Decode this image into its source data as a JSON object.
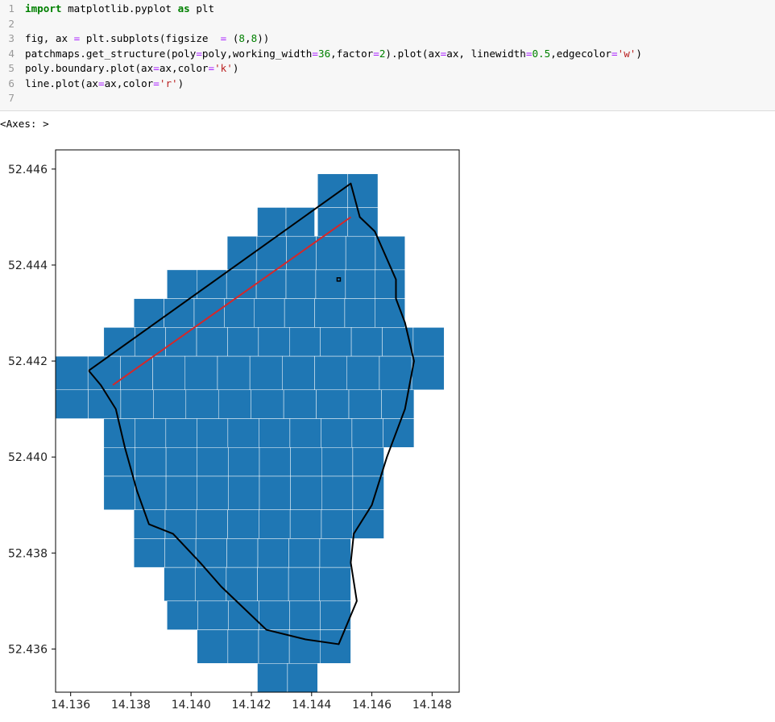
{
  "code_cell": {
    "line_numbers": [
      "1",
      "2",
      "3",
      "4",
      "5",
      "6",
      "7"
    ],
    "lines": [
      [
        {
          "t": "import",
          "c": "kw"
        },
        {
          "t": " matplotlib.pyplot "
        },
        {
          "t": "as",
          "c": "kw"
        },
        {
          "t": " plt"
        }
      ],
      [],
      [
        {
          "t": "fig, ax "
        },
        {
          "t": "=",
          "c": "op"
        },
        {
          "t": " plt.subplots(figsize  "
        },
        {
          "t": "=",
          "c": "op"
        },
        {
          "t": " ("
        },
        {
          "t": "8",
          "c": "num"
        },
        {
          "t": ","
        },
        {
          "t": "8",
          "c": "num"
        },
        {
          "t": "))"
        }
      ],
      [
        {
          "t": "patchmaps.get_structure(poly"
        },
        {
          "t": "=",
          "c": "op"
        },
        {
          "t": "poly,working_width"
        },
        {
          "t": "=",
          "c": "op"
        },
        {
          "t": "36",
          "c": "num"
        },
        {
          "t": ",factor"
        },
        {
          "t": "=",
          "c": "op"
        },
        {
          "t": "2",
          "c": "num"
        },
        {
          "t": ").plot(ax"
        },
        {
          "t": "=",
          "c": "op"
        },
        {
          "t": "ax, linewidth"
        },
        {
          "t": "=",
          "c": "op"
        },
        {
          "t": "0.5",
          "c": "num"
        },
        {
          "t": ",edgecolor"
        },
        {
          "t": "=",
          "c": "op"
        },
        {
          "t": "'w'",
          "c": "str"
        },
        {
          "t": ")"
        }
      ],
      [
        {
          "t": "poly.boundary.plot(ax"
        },
        {
          "t": "=",
          "c": "op"
        },
        {
          "t": "ax,color"
        },
        {
          "t": "=",
          "c": "op"
        },
        {
          "t": "'k'",
          "c": "str"
        },
        {
          "t": ")"
        }
      ],
      [
        {
          "t": "line.plot(ax"
        },
        {
          "t": "=",
          "c": "op"
        },
        {
          "t": "ax,color"
        },
        {
          "t": "=",
          "c": "op"
        },
        {
          "t": "'r'",
          "c": "str"
        },
        {
          "t": ")"
        }
      ],
      []
    ]
  },
  "output": {
    "repr": "<Axes: >"
  },
  "chart_data": {
    "type": "map",
    "grid": false,
    "xlim": [
      14.1355,
      14.1489
    ],
    "ylim": [
      52.4351,
      52.4464
    ],
    "xticks": [
      14.136,
      14.138,
      14.14,
      14.142,
      14.144,
      14.146,
      14.148
    ],
    "xtick_labels": [
      "14.136",
      "14.138",
      "14.140",
      "14.142",
      "14.144",
      "14.146",
      "14.148"
    ],
    "yticks": [
      52.436,
      52.438,
      52.44,
      52.442,
      52.444,
      52.446
    ],
    "ytick_labels": [
      "52.436",
      "52.438",
      "52.440",
      "52.442",
      "52.444",
      "52.446"
    ],
    "colors": {
      "patch_fill": "#1f77b4",
      "patch_edge": "#ffffff",
      "boundary": "#000000",
      "line": "#d62728",
      "axes": "#000000"
    },
    "patch_rows": [
      {
        "y": [
          52.4459,
          52.4452
        ],
        "x_ranges": [
          [
            14.1442,
            14.1462
          ]
        ]
      },
      {
        "y": [
          52.4452,
          52.4446
        ],
        "x_ranges": [
          [
            14.1442,
            14.1462
          ]
        ]
      },
      {
        "y": [
          52.4452,
          52.4446
        ],
        "x_ranges": [
          [
            14.1422,
            14.1441
          ]
        ]
      },
      {
        "y": [
          52.4446,
          52.4439
        ],
        "x_ranges": [
          [
            14.1412,
            14.1471
          ]
        ]
      },
      {
        "y": [
          52.4439,
          52.4433
        ],
        "x_ranges": [
          [
            14.1392,
            14.1471
          ]
        ]
      },
      {
        "y": [
          52.4433,
          52.4427
        ],
        "x_ranges": [
          [
            14.1381,
            14.1471
          ]
        ]
      },
      {
        "y": [
          52.4427,
          52.4421
        ],
        "x_ranges": [
          [
            14.1371,
            14.1484
          ]
        ]
      },
      {
        "y": [
          52.4421,
          52.4414
        ],
        "x_ranges": [
          [
            14.1355,
            14.1484
          ]
        ]
      },
      {
        "y": [
          52.4414,
          52.4408
        ],
        "x_ranges": [
          [
            14.1355,
            14.1474
          ]
        ]
      },
      {
        "y": [
          52.4408,
          52.4402
        ],
        "x_ranges": [
          [
            14.1371,
            14.1474
          ]
        ]
      },
      {
        "y": [
          52.4402,
          52.4396
        ],
        "x_ranges": [
          [
            14.1371,
            14.1464
          ]
        ]
      },
      {
        "y": [
          52.4396,
          52.4389
        ],
        "x_ranges": [
          [
            14.1371,
            14.1464
          ]
        ]
      },
      {
        "y": [
          52.4389,
          52.4383
        ],
        "x_ranges": [
          [
            14.1381,
            14.1464
          ]
        ]
      },
      {
        "y": [
          52.4383,
          52.4377
        ],
        "x_ranges": [
          [
            14.1381,
            14.1453
          ]
        ]
      },
      {
        "y": [
          52.4377,
          52.437
        ],
        "x_ranges": [
          [
            14.1391,
            14.1453
          ]
        ]
      },
      {
        "y": [
          52.437,
          52.4364
        ],
        "x_ranges": [
          [
            14.1392,
            14.1453
          ]
        ]
      },
      {
        "y": [
          52.4364,
          52.4357
        ],
        "x_ranges": [
          [
            14.1402,
            14.1453
          ]
        ]
      },
      {
        "y": [
          52.4357,
          52.4351
        ],
        "x_ranges": [
          [
            14.1422,
            14.1442
          ]
        ]
      }
    ],
    "boundary": [
      [
        14.1366,
        52.4418
      ],
      [
        14.1453,
        52.4457
      ],
      [
        14.1456,
        52.445
      ],
      [
        14.1461,
        52.4447
      ],
      [
        14.1468,
        52.4437
      ],
      [
        14.1468,
        52.4433
      ],
      [
        14.1471,
        52.4428
      ],
      [
        14.1474,
        52.442
      ],
      [
        14.1471,
        52.441
      ],
      [
        14.1465,
        52.44
      ],
      [
        14.146,
        52.439
      ],
      [
        14.1454,
        52.4384
      ],
      [
        14.1453,
        52.4378
      ],
      [
        14.1455,
        52.437
      ],
      [
        14.1449,
        52.4361
      ],
      [
        14.1438,
        52.4362
      ],
      [
        14.1425,
        52.4364
      ],
      [
        14.141,
        52.4373
      ],
      [
        14.1403,
        52.4378
      ],
      [
        14.1394,
        52.4384
      ],
      [
        14.1386,
        52.4386
      ],
      [
        14.1382,
        52.4393
      ],
      [
        14.1378,
        52.4402
      ],
      [
        14.1375,
        52.441
      ],
      [
        14.137,
        52.4415
      ],
      [
        14.1366,
        52.4418
      ]
    ],
    "inner_point": [
      [
        14.1449,
        52.4437
      ]
    ],
    "line": [
      [
        14.1374,
        52.4415
      ],
      [
        14.1453,
        52.445
      ]
    ]
  }
}
